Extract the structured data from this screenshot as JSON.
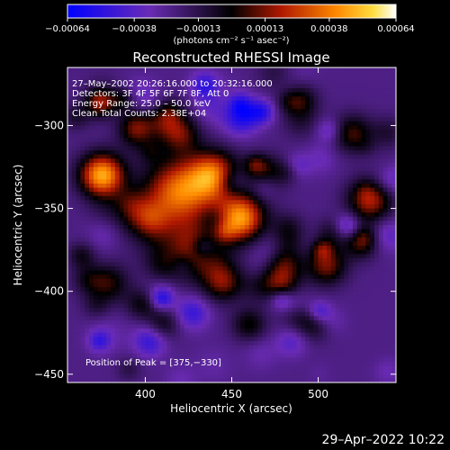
{
  "chart_data": {
    "type": "heatmap",
    "title": "Reconstructed RHESSI Image",
    "xlabel": "Heliocentric X (arcsec)",
    "ylabel": "Heliocentric Y (arcsec)",
    "xlim": [
      355,
      545
    ],
    "ylim": [
      -455,
      -265
    ],
    "xticks": [
      400,
      450,
      500
    ],
    "yticks": [
      -300,
      -350,
      -400,
      -450
    ],
    "ytick_labels": [
      "−300",
      "−350",
      "−400",
      "−450"
    ],
    "colorbar": {
      "range": [
        -0.00064,
        0.00064
      ],
      "ticks": [
        "−0.00064",
        "−0.00038",
        "−0.00013",
        "0.00013",
        "0.00038",
        "0.00064"
      ],
      "tick_values": [
        -0.00064,
        -0.00038,
        -0.00013,
        0.00013,
        0.00038,
        0.00064
      ],
      "unit_text": "(photons cm⁻² s⁻¹ asec⁻²)"
    },
    "annotations": [
      "27–May–2002 20:26:16.000 to 20:32:16.000",
      "Detectors: 3F 4F 5F 6F 7F 8F, Att 0",
      "Energy Range: 25.0 – 50.0 keV",
      "Clean     Total Counts: 2.38E+04"
    ],
    "peak_label": "Position of Peak = [375,−330]",
    "peak": [
      375,
      -330
    ],
    "colors": {
      "low": "#0000ff",
      "mid_low": "#5a2a9a",
      "mid": "#000000",
      "mid_high": "#c81e00",
      "high": "#ffa000",
      "top": "#ffffff"
    }
  },
  "footer": {
    "timestamp": "29–Apr–2022 10:22"
  }
}
